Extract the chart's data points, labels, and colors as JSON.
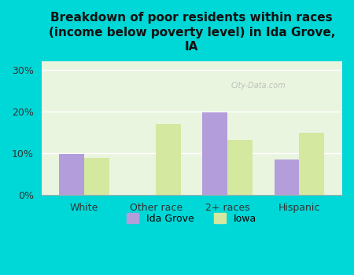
{
  "title": "Breakdown of poor residents within races\n(income below poverty level) in Ida Grove,\nIA",
  "categories": [
    "White",
    "Other race",
    "2+ races",
    "Hispanic"
  ],
  "ida_grove": [
    9.9,
    0,
    19.8,
    8.5
  ],
  "iowa": [
    8.8,
    17.0,
    13.2,
    15.0
  ],
  "ida_grove_color": "#b39ddb",
  "iowa_color": "#d4e8a0",
  "background_outer": "#00d7d7",
  "background_plot": "#eaf5e0",
  "ylim": [
    0,
    32
  ],
  "yticks": [
    0,
    10,
    20,
    30
  ],
  "ytick_labels": [
    "0%",
    "10%",
    "20%",
    "30%"
  ],
  "bar_width": 0.35,
  "legend_labels": [
    "Ida Grove",
    "Iowa"
  ],
  "watermark": "City-Data.com"
}
